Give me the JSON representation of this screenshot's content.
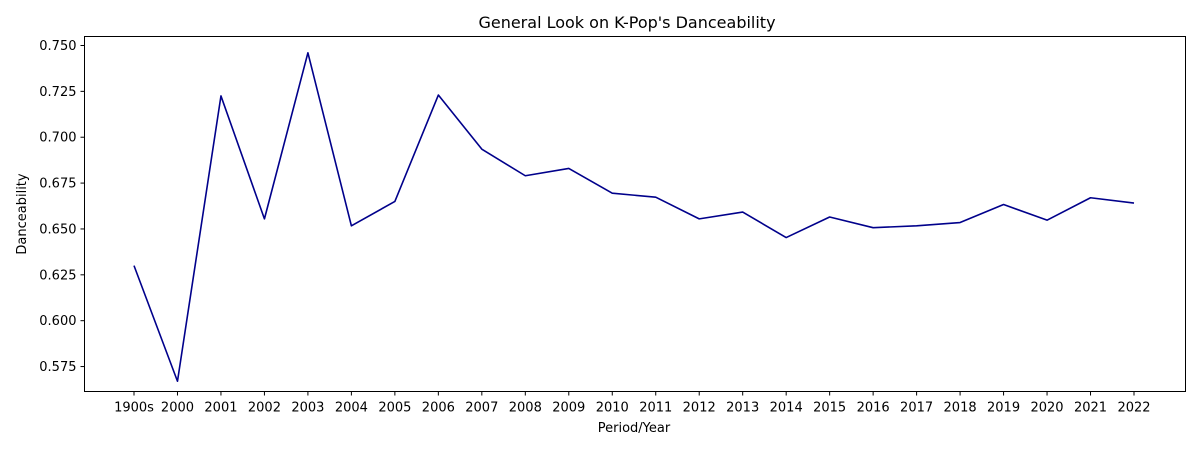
{
  "chart_data": {
    "type": "line",
    "title": "General Look on K-Pop's Danceability",
    "xlabel": "Period/Year",
    "ylabel": "Danceability",
    "categories": [
      "1900s",
      "2000",
      "2001",
      "2002",
      "2003",
      "2004",
      "2005",
      "2006",
      "2007",
      "2008",
      "2009",
      "2010",
      "2011",
      "2012",
      "2013",
      "2014",
      "2015",
      "2016",
      "2017",
      "2018",
      "2019",
      "2020",
      "2021",
      "2022"
    ],
    "series": [
      {
        "values": [
          0.63,
          0.567,
          0.7225,
          0.6555,
          0.746,
          0.6517,
          0.665,
          0.723,
          0.6935,
          0.679,
          0.683,
          0.6695,
          0.6673,
          0.6555,
          0.6592,
          0.6453,
          0.6565,
          0.6507,
          0.6517,
          0.6535,
          0.6633,
          0.6548,
          0.667,
          0.6641
        ],
        "color": "#00008b"
      }
    ],
    "yticks": [
      "0.575",
      "0.600",
      "0.625",
      "0.650",
      "0.675",
      "0.700",
      "0.725",
      "0.750"
    ],
    "ylim": [
      0.5614,
      0.7549
    ],
    "grid": false,
    "legend": "none"
  }
}
